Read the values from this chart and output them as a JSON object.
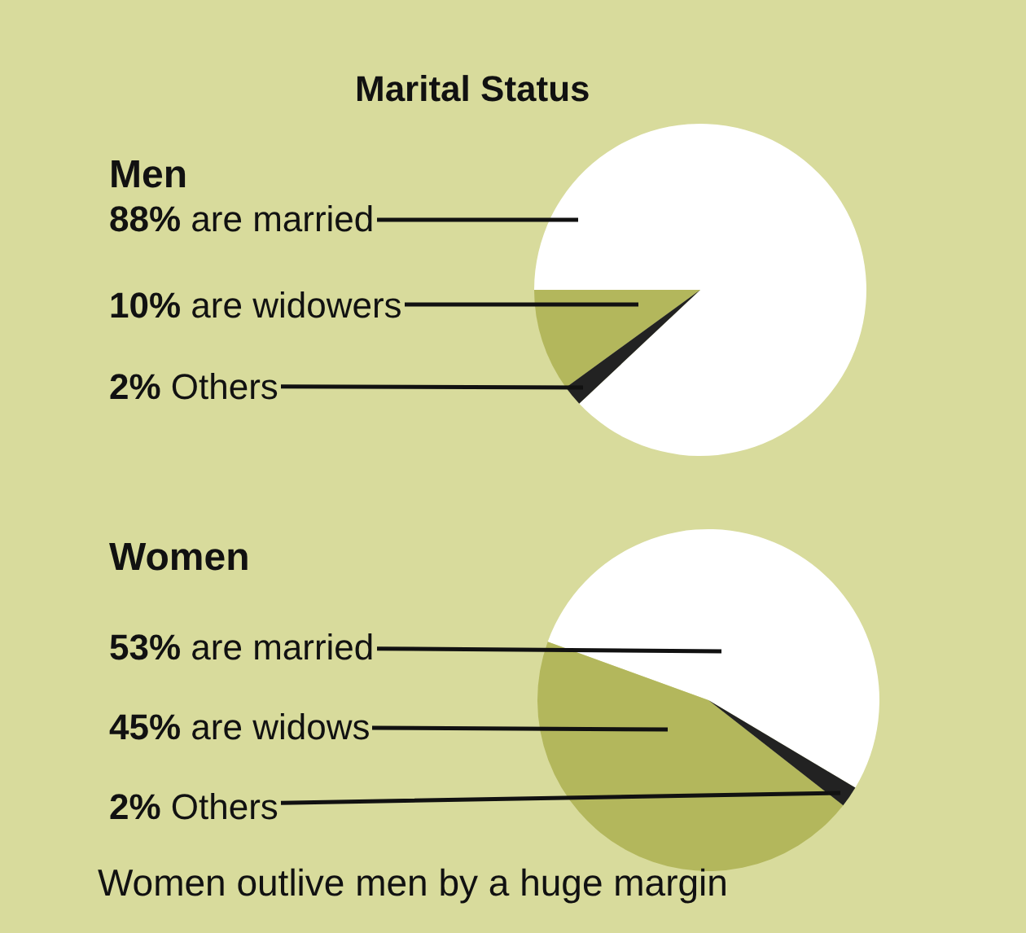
{
  "chart_data": [
    {
      "type": "pie",
      "title": "Marital Status",
      "subtitle": "Men",
      "categories": [
        "are married",
        "are widowers",
        "Others"
      ],
      "values": [
        88,
        10,
        2
      ],
      "colors": [
        "#ffffff",
        "#b3b75c",
        "#222222"
      ],
      "value_labels": [
        "88%",
        "10%",
        "2%"
      ],
      "legend": false
    },
    {
      "type": "pie",
      "subtitle": "Women",
      "categories": [
        "are married",
        "are widows",
        "Others"
      ],
      "values": [
        53,
        45,
        2
      ],
      "colors": [
        "#ffffff",
        "#b3b75c",
        "#222222"
      ],
      "value_labels": [
        "53%",
        "45%",
        "2%"
      ],
      "legend": false,
      "annotations": [
        "Women outlive men by a huge margin"
      ]
    }
  ]
}
